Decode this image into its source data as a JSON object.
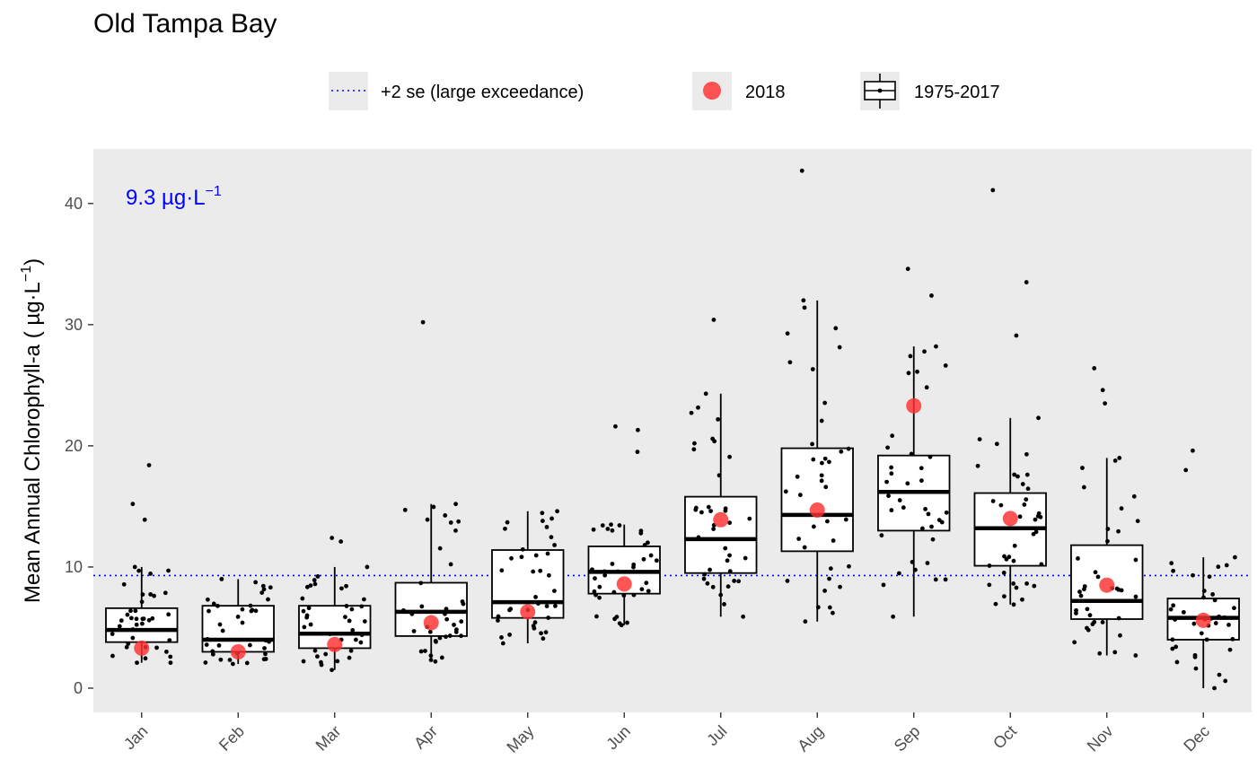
{
  "chart_data": {
    "type": "box",
    "title": "Old Tampa Bay",
    "xlabel": "",
    "ylabel": "Mean Annual Chlorophyll-a ( µg·L",
    "ylabel_sup": "−1",
    "ylabel_close": ")",
    "ylim": [
      -2,
      44.5
    ],
    "yticks": [
      0,
      10,
      20,
      30,
      40
    ],
    "grid": false,
    "background": "#ebebeb",
    "threshold": {
      "value": 9.3,
      "label_main": "9.3 µg·L",
      "label_sup": "−1",
      "color": "#0000ff"
    },
    "legend": {
      "placement": "top",
      "items": [
        {
          "key": "threshold",
          "label": "+2 se (large exceedance)"
        },
        {
          "key": "current",
          "label": "2018"
        },
        {
          "key": "historical",
          "label": "1975-2017"
        }
      ]
    },
    "colors": {
      "current": "#ff3030",
      "threshold": "#0000ff",
      "points": "#000000"
    },
    "categories": [
      "Jan",
      "Feb",
      "Mar",
      "Apr",
      "May",
      "Jun",
      "Jul",
      "Aug",
      "Sep",
      "Oct",
      "Nov",
      "Dec"
    ],
    "boxes": [
      {
        "min": 2.1,
        "q1": 3.8,
        "median": 4.8,
        "q3": 6.6,
        "max": 10.0
      },
      {
        "min": 2.0,
        "q1": 3.0,
        "median": 4.0,
        "q3": 6.8,
        "max": 9.0
      },
      {
        "min": 1.5,
        "q1": 3.3,
        "median": 4.5,
        "q3": 6.8,
        "max": 10.0
      },
      {
        "min": 2.2,
        "q1": 4.3,
        "median": 6.3,
        "q3": 8.7,
        "max": 15.2
      },
      {
        "min": 3.7,
        "q1": 5.8,
        "median": 7.1,
        "q3": 11.4,
        "max": 14.6
      },
      {
        "min": 5.2,
        "q1": 7.8,
        "median": 9.6,
        "q3": 11.7,
        "max": 13.5
      },
      {
        "min": 5.9,
        "q1": 9.5,
        "median": 12.3,
        "q3": 15.8,
        "max": 24.3
      },
      {
        "min": 5.5,
        "q1": 11.3,
        "median": 14.3,
        "q3": 19.8,
        "max": 32.0
      },
      {
        "min": 5.9,
        "q1": 13.0,
        "median": 16.2,
        "q3": 19.2,
        "max": 28.2
      },
      {
        "min": 6.9,
        "q1": 10.1,
        "median": 13.2,
        "q3": 16.1,
        "max": 22.3
      },
      {
        "min": 2.7,
        "q1": 5.7,
        "median": 7.2,
        "q3": 11.8,
        "max": 19.0
      },
      {
        "min": 0.0,
        "q1": 4.0,
        "median": 5.8,
        "q3": 7.4,
        "max": 10.8
      }
    ],
    "outliers": [
      [
        18.4,
        15.2,
        13.9
      ],
      [],
      [
        12.4,
        12.1
      ],
      [
        30.2
      ],
      [],
      [
        21.6,
        21.3,
        19.5
      ],
      [
        30.4
      ],
      [
        42.7
      ],
      [
        34.6,
        32.4
      ],
      [
        41.1,
        33.5,
        29.1
      ],
      [
        26.4,
        24.6,
        23.5
      ],
      [
        19.6,
        18.0
      ]
    ],
    "current_year": {
      "name": "2018",
      "values": [
        3.3,
        3.0,
        3.6,
        5.4,
        6.3,
        8.6,
        13.9,
        14.7,
        23.3,
        14.0,
        8.5,
        5.6
      ]
    }
  }
}
